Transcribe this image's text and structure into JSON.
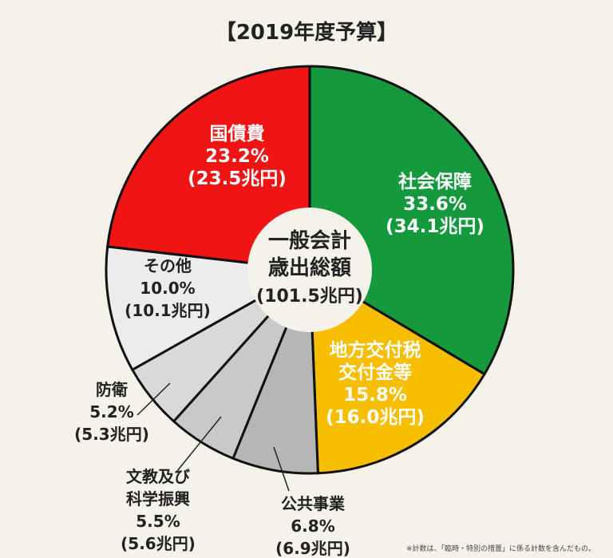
{
  "chart_data": {
    "type": "pie",
    "title": "【2019年度予算】",
    "center_label": [
      "一般会計",
      "歳出総額",
      "(101.5兆円)"
    ],
    "slices": [
      {
        "name": "社会保障",
        "value": 33.6,
        "label_lines": [
          "社会保障",
          "33.6%",
          "(34.1兆円)"
        ],
        "color": "#149a3c",
        "text_color": "#ffffff"
      },
      {
        "name": "地方交付税交付金等",
        "value": 15.8,
        "label_lines": [
          "地方交付税",
          "交付金等",
          "15.8%",
          "(16.0兆円)"
        ],
        "color": "#f7be00",
        "text_color": "#ffffff"
      },
      {
        "name": "公共事業",
        "value": 6.8,
        "label_lines": [
          "公共事業",
          "6.8%",
          "(6.9兆円)"
        ],
        "color": "#b6b6b6",
        "text_color": "#222222"
      },
      {
        "name": "文教及び科学振興",
        "value": 5.5,
        "label_lines": [
          "文教及び",
          "科学振興",
          "5.5%",
          "(5.6兆円)"
        ],
        "color": "#c9c9c9",
        "text_color": "#222222"
      },
      {
        "name": "防衛",
        "value": 5.2,
        "label_lines": [
          "防衛",
          "5.2%",
          "(5.3兆円)"
        ],
        "color": "#d9d9d9",
        "text_color": "#222222"
      },
      {
        "name": "その他",
        "value": 10.0,
        "label_lines": [
          "その他",
          "10.0%",
          "(10.1兆円)"
        ],
        "color": "#ececec",
        "text_color": "#222222"
      },
      {
        "name": "国債費",
        "value": 23.2,
        "label_lines": [
          "国債費",
          "23.2%",
          "(23.5兆円)"
        ],
        "color": "#f01414",
        "text_color": "#ffffff"
      }
    ],
    "footnote": "※計数は、「臨時・特別の措置」に係る計数を含んだもの。"
  }
}
